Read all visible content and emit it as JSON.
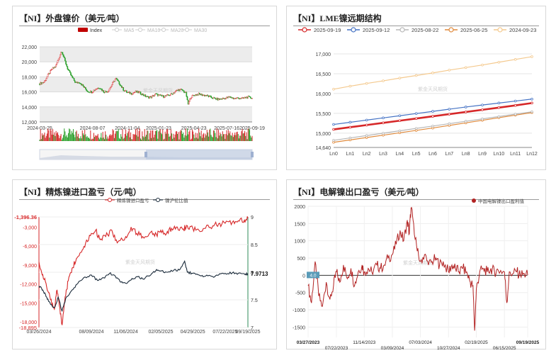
{
  "chart_data": [
    {
      "type": "candlestick",
      "title": "【NI】外盘镍价（美元/吨）",
      "legend": [
        "Index",
        "MA5",
        "MA10",
        "MA20",
        "MA30"
      ],
      "colors": {
        "up": "#d62728",
        "down": "#2ca02c",
        "legend_active": "#c00000",
        "legend_inactive": "#cccccc"
      },
      "xlabels": [
        "2024-03-25",
        "2024-08-07",
        "2024-11-04",
        "2025-01-23",
        "2025-04-23",
        "2025-07-16",
        "2025-09-19"
      ],
      "x_dates": [
        "2024-03-25",
        "2024-08-07",
        "2024-11-04",
        "2025-01-23",
        "2025-04-23",
        "2025-07-16",
        "2025-09-19"
      ],
      "ylim": [
        12000,
        22000
      ],
      "yticks": [
        12000,
        14000,
        16000,
        18000,
        20000,
        22000
      ],
      "close_series": [
        [
          "2024-03-25",
          17100
        ],
        [
          "2024-04-05",
          17300
        ],
        [
          "2024-04-15",
          18200
        ],
        [
          "2024-04-25",
          19000
        ],
        [
          "2024-05-05",
          19400
        ],
        [
          "2024-05-15",
          20800
        ],
        [
          "2024-05-20",
          21500
        ],
        [
          "2024-05-28",
          20200
        ],
        [
          "2024-06-05",
          19000
        ],
        [
          "2024-06-15",
          18000
        ],
        [
          "2024-06-25",
          17200
        ],
        [
          "2024-07-05",
          17300
        ],
        [
          "2024-07-15",
          16700
        ],
        [
          "2024-07-25",
          16100
        ],
        [
          "2024-08-05",
          16000
        ],
        [
          "2024-08-15",
          16400
        ],
        [
          "2024-08-25",
          16600
        ],
        [
          "2024-09-05",
          16000
        ],
        [
          "2024-09-15",
          16100
        ],
        [
          "2024-09-25",
          16900
        ],
        [
          "2024-10-05",
          17800
        ],
        [
          "2024-10-15",
          17100
        ],
        [
          "2024-10-25",
          16300
        ],
        [
          "2024-11-04",
          15900
        ],
        [
          "2024-11-15",
          15800
        ],
        [
          "2024-11-25",
          16000
        ],
        [
          "2024-12-05",
          15900
        ],
        [
          "2024-12-15",
          15600
        ],
        [
          "2024-12-25",
          15300
        ],
        [
          "2025-01-05",
          15300
        ],
        [
          "2025-01-15",
          15700
        ],
        [
          "2025-01-25",
          15500
        ],
        [
          "2025-02-05",
          15400
        ],
        [
          "2025-02-15",
          15500
        ],
        [
          "2025-02-25",
          15700
        ],
        [
          "2025-03-05",
          16000
        ],
        [
          "2025-03-15",
          16300
        ],
        [
          "2025-03-25",
          16200
        ],
        [
          "2025-04-03",
          15800
        ],
        [
          "2025-04-08",
          14300
        ],
        [
          "2025-04-15",
          15300
        ],
        [
          "2025-04-25",
          15600
        ],
        [
          "2025-05-05",
          15700
        ],
        [
          "2025-05-15",
          15600
        ],
        [
          "2025-05-25",
          15500
        ],
        [
          "2025-06-05",
          15300
        ],
        [
          "2025-06-15",
          15100
        ],
        [
          "2025-06-25",
          15000
        ],
        [
          "2025-07-05",
          15100
        ],
        [
          "2025-07-15",
          15200
        ],
        [
          "2025-07-25",
          15300
        ],
        [
          "2025-08-05",
          15100
        ],
        [
          "2025-08-15",
          15200
        ],
        [
          "2025-08-25",
          15100
        ],
        [
          "2025-09-05",
          15300
        ],
        [
          "2025-09-19",
          15200
        ]
      ]
    },
    {
      "type": "line",
      "title": "【NI】LME镍远期结构",
      "categories": [
        "Ln0",
        "Ln1",
        "Ln2",
        "Ln3",
        "Ln4",
        "Ln5",
        "Ln6",
        "Ln7",
        "Ln8",
        "Ln9",
        "Ln10",
        "Ln11",
        "Ln12"
      ],
      "ylim": [
        14640,
        17000
      ],
      "yticks": [
        14640,
        15000,
        15500,
        16000,
        16500,
        17000
      ],
      "series": [
        {
          "name": "2025-09-19",
          "color": "#d62728",
          "values": [
            15095,
            15150,
            15205,
            15260,
            15315,
            15370,
            15425,
            15480,
            15535,
            15590,
            15645,
            15700,
            15760
          ]
        },
        {
          "name": "2025-09-12",
          "color": "#4472c4",
          "values": [
            15220,
            15275,
            15330,
            15385,
            15440,
            15495,
            15550,
            15605,
            15660,
            15710,
            15760,
            15810,
            15860
          ]
        },
        {
          "name": "2025-08-22",
          "color": "#b8b8b8",
          "values": [
            14820,
            14880,
            14940,
            15000,
            15060,
            15120,
            15180,
            15240,
            15300,
            15360,
            15420,
            15480,
            15540
          ]
        },
        {
          "name": "2025-06-25",
          "color": "#e08a3c",
          "values": [
            14770,
            14830,
            14890,
            14950,
            15010,
            15070,
            15130,
            15195,
            15260,
            15325,
            15390,
            15455,
            15520
          ]
        },
        {
          "name": "2024-09-23",
          "color": "#f4c98e",
          "values": [
            16110,
            16185,
            16255,
            16320,
            16390,
            16455,
            16520,
            16590,
            16655,
            16720,
            16790,
            16860,
            16930
          ]
        }
      ]
    },
    {
      "type": "line",
      "title": "【NI】精炼镍进口盈亏（元/吨）",
      "legend": [
        "精炼镍进口盈亏",
        "镍沪伦比值"
      ],
      "xlabels": [
        "03/26/2024",
        "08/09/2024",
        "11/06/2024",
        "02/05/2025",
        "04/29/2025",
        "07/22/2025",
        "09/19/2025"
      ],
      "x_dates": [
        "2024-03-26",
        "2024-08-09",
        "2024-11-06",
        "2025-02-05",
        "2025-04-29",
        "2025-07-22",
        "2025-09-19"
      ],
      "ylim_left": [
        -18895,
        -1396.36
      ],
      "yticks_left": [
        -18895,
        -18000,
        -15000,
        -12000,
        -9000,
        -6000,
        -3000,
        -1396.36
      ],
      "ylim_right": [
        7,
        9
      ],
      "yticks_right": [
        7,
        7.5,
        8,
        8.5,
        9
      ],
      "current_right": "7.9713",
      "series": [
        {
          "name": "精炼镍进口盈亏",
          "color": "#d62728",
          "axis": "left",
          "points": [
            [
              "2024-03-26",
              -8500
            ],
            [
              "2024-04-05",
              -10500
            ],
            [
              "2024-04-15",
              -12500
            ],
            [
              "2024-04-25",
              -14500
            ],
            [
              "2024-05-05",
              -16000
            ],
            [
              "2024-05-12",
              -13000
            ],
            [
              "2024-05-18",
              -15500
            ],
            [
              "2024-05-25",
              -18500
            ],
            [
              "2024-06-02",
              -14000
            ],
            [
              "2024-06-10",
              -11500
            ],
            [
              "2024-06-20",
              -9500
            ],
            [
              "2024-07-01",
              -8000
            ],
            [
              "2024-07-12",
              -7000
            ],
            [
              "2024-07-25",
              -5500
            ],
            [
              "2024-08-09",
              -4000
            ],
            [
              "2024-08-20",
              -3500
            ],
            [
              "2024-09-01",
              -5000
            ],
            [
              "2024-09-15",
              -4500
            ],
            [
              "2024-10-01",
              -3500
            ],
            [
              "2024-10-15",
              -5500
            ],
            [
              "2024-11-06",
              -4500
            ],
            [
              "2024-11-20",
              -3000
            ],
            [
              "2024-12-05",
              -4000
            ],
            [
              "2024-12-20",
              -4500
            ],
            [
              "2025-01-10",
              -3800
            ],
            [
              "2025-01-25",
              -4200
            ],
            [
              "2025-02-05",
              -3500
            ],
            [
              "2025-02-20",
              -4000
            ],
            [
              "2025-03-05",
              -3200
            ],
            [
              "2025-03-20",
              -3000
            ],
            [
              "2025-04-05",
              -3300
            ],
            [
              "2025-04-15",
              -2800
            ],
            [
              "2025-04-29",
              -3200
            ],
            [
              "2025-05-15",
              -3500
            ],
            [
              "2025-06-01",
              -3200
            ],
            [
              "2025-06-20",
              -2800
            ],
            [
              "2025-07-05",
              -2500
            ],
            [
              "2025-07-22",
              -2400
            ],
            [
              "2025-08-10",
              -2200
            ],
            [
              "2025-08-25",
              -2000
            ],
            [
              "2025-09-10",
              -1900
            ],
            [
              "2025-09-19",
              -1600
            ]
          ]
        },
        {
          "name": "镍沪伦比值",
          "color": "#1a2a3a",
          "axis": "right",
          "points": [
            [
              "2024-03-26",
              7.75
            ],
            [
              "2024-04-05",
              7.68
            ],
            [
              "2024-04-15",
              7.55
            ],
            [
              "2024-04-25",
              7.42
            ],
            [
              "2024-05-05",
              7.36
            ],
            [
              "2024-05-15",
              7.55
            ],
            [
              "2024-05-25",
              7.3
            ],
            [
              "2024-06-05",
              7.55
            ],
            [
              "2024-06-20",
              7.68
            ],
            [
              "2024-07-05",
              7.8
            ],
            [
              "2024-07-20",
              7.9
            ],
            [
              "2024-08-09",
              7.95
            ],
            [
              "2024-08-25",
              7.85
            ],
            [
              "2024-09-10",
              7.9
            ],
            [
              "2024-09-25",
              7.98
            ],
            [
              "2024-10-10",
              7.93
            ],
            [
              "2024-10-25",
              7.82
            ],
            [
              "2024-11-06",
              7.8
            ],
            [
              "2024-11-20",
              7.86
            ],
            [
              "2024-12-05",
              7.92
            ],
            [
              "2024-12-20",
              7.88
            ],
            [
              "2025-01-10",
              7.95
            ],
            [
              "2025-01-25",
              8.05
            ],
            [
              "2025-02-05",
              8.02
            ],
            [
              "2025-02-20",
              8.0
            ],
            [
              "2025-03-10",
              8.03
            ],
            [
              "2025-03-25",
              8.04
            ],
            [
              "2025-04-08",
              8.2
            ],
            [
              "2025-04-15",
              8.0
            ],
            [
              "2025-04-29",
              7.98
            ],
            [
              "2025-05-15",
              7.95
            ],
            [
              "2025-06-01",
              7.93
            ],
            [
              "2025-06-20",
              7.92
            ],
            [
              "2025-07-05",
              7.95
            ],
            [
              "2025-07-22",
              7.98
            ],
            [
              "2025-08-10",
              7.99
            ],
            [
              "2025-08-25",
              7.98
            ],
            [
              "2025-09-10",
              7.97
            ],
            [
              "2025-09-19",
              7.9713
            ]
          ]
        }
      ]
    },
    {
      "type": "line",
      "title": "【NI】电解镍出口盈亏（美元/吨）",
      "legend": [
        "中国电解镍出口盈利值"
      ],
      "xlabels_top": [
        "03/27/2023",
        "11/14/2023",
        "07/03/2024",
        "02/19/2025",
        "09/19/2025"
      ],
      "xlabels_bottom": [
        "07/22/2023",
        "03/09/2024",
        "10/27/2024",
        "06/15/2025"
      ],
      "x_dates_top": [
        "2023-03-27",
        "2023-11-14",
        "2024-07-03",
        "2025-02-19",
        "2025-09-19"
      ],
      "x_dates_bottom": [
        "2023-07-22",
        "2024-03-09",
        "2024-10-27",
        "2025-06-15"
      ],
      "ylim": [
        -1800,
        2000
      ],
      "yticks": [
        -1500,
        -1000,
        -500,
        0,
        500,
        1000,
        1500,
        2000
      ],
      "current": "4.0",
      "series": [
        {
          "name": "中国电解镍出口盈利值",
          "color": "#b22222",
          "points": [
            [
              "2023-03-27",
              -300
            ],
            [
              "2023-04-10",
              -800
            ],
            [
              "2023-04-25",
              400
            ],
            [
              "2023-05-10",
              -600
            ],
            [
              "2023-05-25",
              -900
            ],
            [
              "2023-06-10",
              -200
            ],
            [
              "2023-06-25",
              -700
            ],
            [
              "2023-07-10",
              -300
            ],
            [
              "2023-07-22",
              100
            ],
            [
              "2023-08-05",
              -200
            ],
            [
              "2023-08-20",
              300
            ],
            [
              "2023-09-05",
              -100
            ],
            [
              "2023-09-20",
              200
            ],
            [
              "2023-10-05",
              -300
            ],
            [
              "2023-10-20",
              100
            ],
            [
              "2023-11-05",
              300
            ],
            [
              "2023-11-14",
              100
            ],
            [
              "2023-11-30",
              200
            ],
            [
              "2023-12-15",
              100
            ],
            [
              "2024-01-05",
              300
            ],
            [
              "2024-01-20",
              200
            ],
            [
              "2024-02-05",
              300
            ],
            [
              "2024-02-20",
              500
            ],
            [
              "2024-03-09",
              600
            ],
            [
              "2024-03-25",
              900
            ],
            [
              "2024-04-10",
              1300
            ],
            [
              "2024-04-25",
              1000
            ],
            [
              "2024-05-10",
              1600
            ],
            [
              "2024-05-18",
              1200
            ],
            [
              "2024-05-25",
              1950
            ],
            [
              "2024-06-05",
              1500
            ],
            [
              "2024-06-20",
              700
            ],
            [
              "2024-07-03",
              400
            ],
            [
              "2024-07-20",
              600
            ],
            [
              "2024-08-05",
              300
            ],
            [
              "2024-08-20",
              400
            ],
            [
              "2024-09-05",
              500
            ],
            [
              "2024-09-20",
              300
            ],
            [
              "2024-10-05",
              400
            ],
            [
              "2024-10-27",
              100
            ],
            [
              "2024-11-10",
              300
            ],
            [
              "2024-11-25",
              200
            ],
            [
              "2024-12-10",
              100
            ],
            [
              "2024-12-25",
              200
            ],
            [
              "2025-01-10",
              100
            ],
            [
              "2025-01-25",
              -200
            ],
            [
              "2025-02-05",
              -300
            ],
            [
              "2025-02-12",
              -1600
            ],
            [
              "2025-02-19",
              -400
            ],
            [
              "2025-03-05",
              100
            ],
            [
              "2025-03-20",
              200
            ],
            [
              "2025-04-05",
              100
            ],
            [
              "2025-04-20",
              200
            ],
            [
              "2025-05-05",
              100
            ],
            [
              "2025-05-20",
              150
            ],
            [
              "2025-06-15",
              100
            ],
            [
              "2025-06-25",
              -800
            ],
            [
              "2025-07-05",
              100
            ],
            [
              "2025-07-20",
              50
            ],
            [
              "2025-08-05",
              100
            ],
            [
              "2025-08-20",
              0
            ],
            [
              "2025-09-05",
              50
            ],
            [
              "2025-09-19",
              4
            ]
          ]
        }
      ]
    }
  ]
}
